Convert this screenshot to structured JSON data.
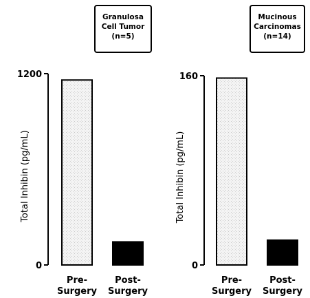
{
  "chart_data": [
    {
      "type": "bar",
      "title_lines": [
        "Granulosa",
        "Cell Tumor",
        "(n=5)"
      ],
      "ylabel": "Total Inhibin (pg/mL)",
      "ylim": [
        0,
        1200
      ],
      "y_ticks": [
        "0",
        "1200"
      ],
      "categories": [
        [
          "Pre-",
          "Surgery"
        ],
        [
          "Post-",
          "Surgery"
        ]
      ],
      "values": [
        1160,
        145
      ],
      "bar_fills": [
        "#efefef",
        "#000000"
      ]
    },
    {
      "type": "bar",
      "title_lines": [
        "Mucinous",
        "Carcinomas",
        "(n=14)"
      ],
      "ylabel": "Total Inhibin (pg/mL)",
      "ylim": [
        0,
        160
      ],
      "y_ticks": [
        "0",
        "160"
      ],
      "categories": [
        [
          "Pre-",
          "Surgery"
        ],
        [
          "Post-",
          "Surgery"
        ]
      ],
      "values": [
        158,
        21
      ],
      "bar_fills": [
        "#e8e8e8",
        "#000000"
      ]
    }
  ]
}
